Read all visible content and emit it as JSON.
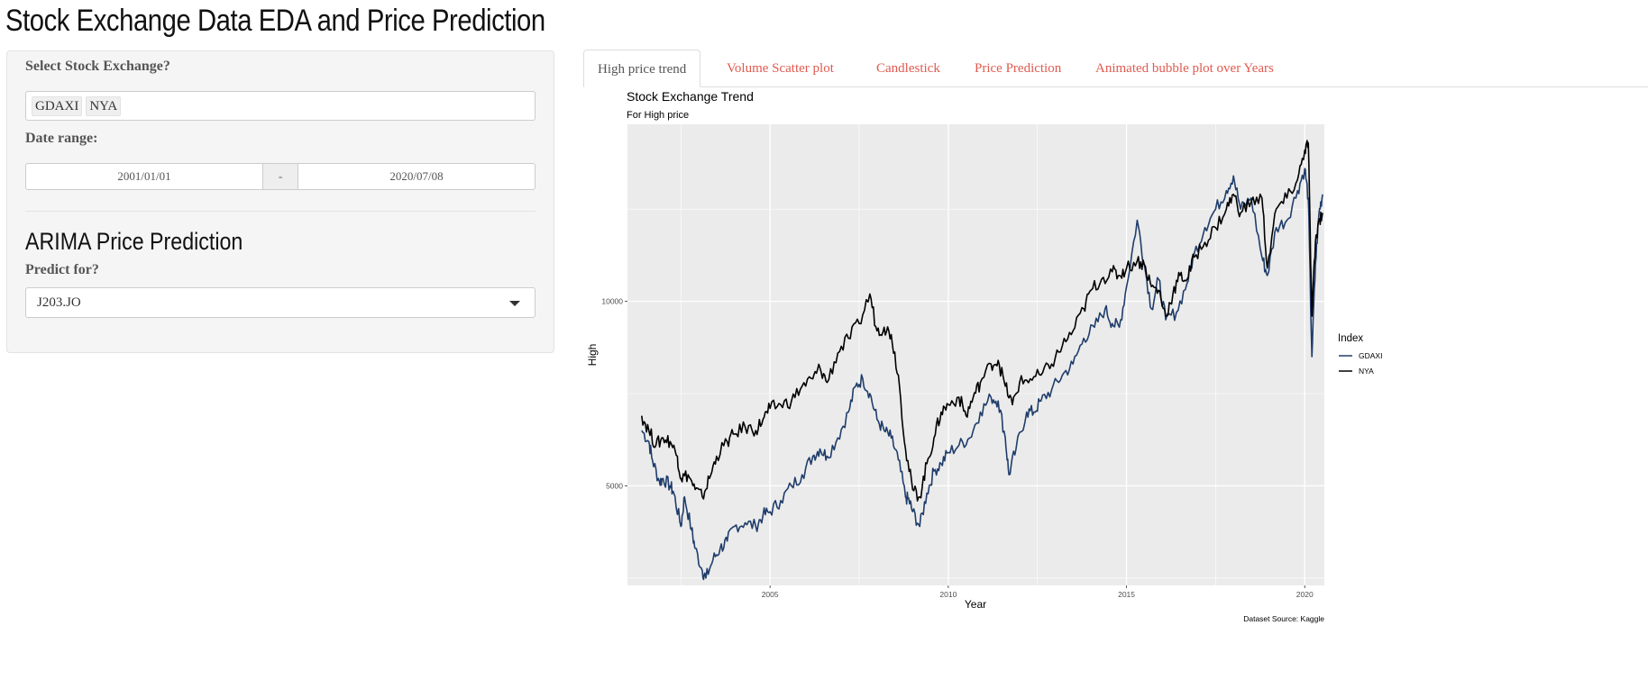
{
  "app_title": "Stock Exchange Data EDA and Price Prediction",
  "sidebar": {
    "exchange_label": "Select Stock Exchange?",
    "selected_exchanges": [
      "GDAXI",
      "NYA"
    ],
    "date_label": "Date range:",
    "date_start": "2001/01/01",
    "date_sep": "-",
    "date_end": "2020/07/08",
    "arima_title": "ARIMA Price Prediction",
    "predict_label": "Predict for?",
    "predict_value": "J203.JO"
  },
  "tabs": [
    {
      "label": "High price trend",
      "active": true
    },
    {
      "label": "Volume Scatter plot",
      "active": false
    },
    {
      "label": "Candlestick",
      "active": false
    },
    {
      "label": "Price Prediction",
      "active": false
    },
    {
      "label": "Animated bubble plot over Years",
      "active": false
    }
  ],
  "icons": {
    "dropdown": "chevron-down-icon"
  },
  "colors": {
    "tab_link": "#e05a4f",
    "gdaxi_line": "#1f3d6b",
    "nya_line": "#000000",
    "panel": "#ebebeb"
  },
  "chart_data": {
    "type": "line",
    "title": "Stock Exchange Trend",
    "subtitle": "For High price",
    "xlabel": "Year",
    "ylabel": "High",
    "caption": "Dataset Source: Kaggle",
    "xlim": [
      2001.0,
      2020.55
    ],
    "ylim": [
      2300,
      14800
    ],
    "x_ticks": [
      2005,
      2010,
      2015,
      2020
    ],
    "y_ticks": [
      5000,
      10000
    ],
    "grid": true,
    "legend": {
      "title": "Index",
      "placement": "right"
    },
    "series": [
      {
        "name": "GDAXI",
        "color": "#1f3d6b",
        "x": [
          2001.4,
          2001.6,
          2001.7,
          2001.9,
          2002.0,
          2002.2,
          2002.3,
          2002.5,
          2002.6,
          2002.8,
          2002.9,
          2003.1,
          2003.2,
          2003.4,
          2003.6,
          2003.8,
          2004.0,
          2004.3,
          2004.6,
          2004.8,
          2005.0,
          2005.3,
          2005.6,
          2005.9,
          2006.2,
          2006.4,
          2006.6,
          2006.9,
          2007.2,
          2007.4,
          2007.6,
          2007.8,
          2008.0,
          2008.2,
          2008.4,
          2008.6,
          2008.8,
          2008.9,
          2009.0,
          2009.2,
          2009.4,
          2009.6,
          2009.8,
          2010.0,
          2010.3,
          2010.6,
          2010.9,
          2011.2,
          2011.4,
          2011.6,
          2011.7,
          2011.9,
          2012.2,
          2012.4,
          2012.6,
          2012.9,
          2013.2,
          2013.5,
          2013.8,
          2014.1,
          2014.4,
          2014.6,
          2014.8,
          2015.0,
          2015.3,
          2015.5,
          2015.7,
          2015.9,
          2016.1,
          2016.4,
          2016.7,
          2016.9,
          2017.2,
          2017.5,
          2017.8,
          2018.0,
          2018.2,
          2018.5,
          2018.8,
          2018.95,
          2019.2,
          2019.5,
          2019.8,
          2020.0,
          2020.1,
          2020.2,
          2020.3,
          2020.4,
          2020.5
        ],
        "y": [
          6500,
          6200,
          5700,
          5100,
          5200,
          5000,
          4800,
          3900,
          4700,
          3800,
          3300,
          2700,
          2500,
          3000,
          3300,
          3500,
          3900,
          4000,
          3900,
          4200,
          4300,
          4600,
          5000,
          5300,
          5800,
          6000,
          5800,
          6300,
          7000,
          7700,
          7900,
          7500,
          6800,
          6500,
          6300,
          5700,
          4700,
          4600,
          4300,
          3900,
          4800,
          5400,
          5600,
          5900,
          6100,
          6300,
          7000,
          7400,
          7300,
          6300,
          5300,
          6000,
          7000,
          7000,
          7300,
          7600,
          8000,
          8300,
          9000,
          9300,
          9800,
          9400,
          9300,
          10400,
          12200,
          11000,
          9800,
          10600,
          9500,
          9700,
          10500,
          11300,
          12000,
          12500,
          13000,
          13400,
          12500,
          12800,
          11200,
          10700,
          12000,
          12200,
          13000,
          13600,
          12800,
          8500,
          11000,
          12400,
          12900
        ]
      },
      {
        "name": "NYA",
        "color": "#000000",
        "x": [
          2001.4,
          2001.6,
          2001.8,
          2002.0,
          2002.2,
          2002.4,
          2002.5,
          2002.7,
          2002.9,
          2003.1,
          2003.3,
          2003.5,
          2003.8,
          2004.0,
          2004.3,
          2004.6,
          2004.8,
          2005.0,
          2005.3,
          2005.6,
          2005.9,
          2006.2,
          2006.4,
          2006.6,
          2006.9,
          2007.2,
          2007.5,
          2007.8,
          2008.0,
          2008.2,
          2008.4,
          2008.6,
          2008.8,
          2009.0,
          2009.2,
          2009.4,
          2009.6,
          2009.8,
          2010.0,
          2010.3,
          2010.5,
          2010.7,
          2010.9,
          2011.2,
          2011.4,
          2011.6,
          2011.8,
          2012.0,
          2012.3,
          2012.6,
          2012.9,
          2013.2,
          2013.5,
          2013.8,
          2014.0,
          2014.3,
          2014.6,
          2014.8,
          2015.0,
          2015.3,
          2015.5,
          2015.7,
          2015.9,
          2016.1,
          2016.3,
          2016.5,
          2016.7,
          2016.9,
          2017.2,
          2017.5,
          2017.8,
          2018.0,
          2018.2,
          2018.5,
          2018.8,
          2018.95,
          2019.2,
          2019.5,
          2019.8,
          2020.0,
          2020.1,
          2020.2,
          2020.3,
          2020.4,
          2020.5
        ],
        "y": [
          6900,
          6500,
          6100,
          6300,
          6200,
          5800,
          5200,
          5300,
          4900,
          4700,
          5200,
          5800,
          6200,
          6400,
          6600,
          6500,
          6800,
          7100,
          7200,
          7300,
          7700,
          7900,
          8200,
          7800,
          8600,
          9000,
          9400,
          10200,
          9200,
          9300,
          9100,
          8000,
          6000,
          4900,
          4700,
          5600,
          6300,
          7000,
          7200,
          7400,
          6900,
          7400,
          7800,
          8300,
          8400,
          7700,
          7200,
          7800,
          7900,
          8000,
          8300,
          8800,
          9200,
          9800,
          10300,
          10600,
          10800,
          10700,
          10900,
          11100,
          11000,
          10400,
          10300,
          9600,
          10200,
          10700,
          10600,
          11200,
          11600,
          12000,
          12500,
          12900,
          12400,
          12700,
          12800,
          10900,
          12500,
          12800,
          13300,
          14100,
          14300,
          9600,
          11600,
          12200,
          12400
        ]
      }
    ]
  }
}
